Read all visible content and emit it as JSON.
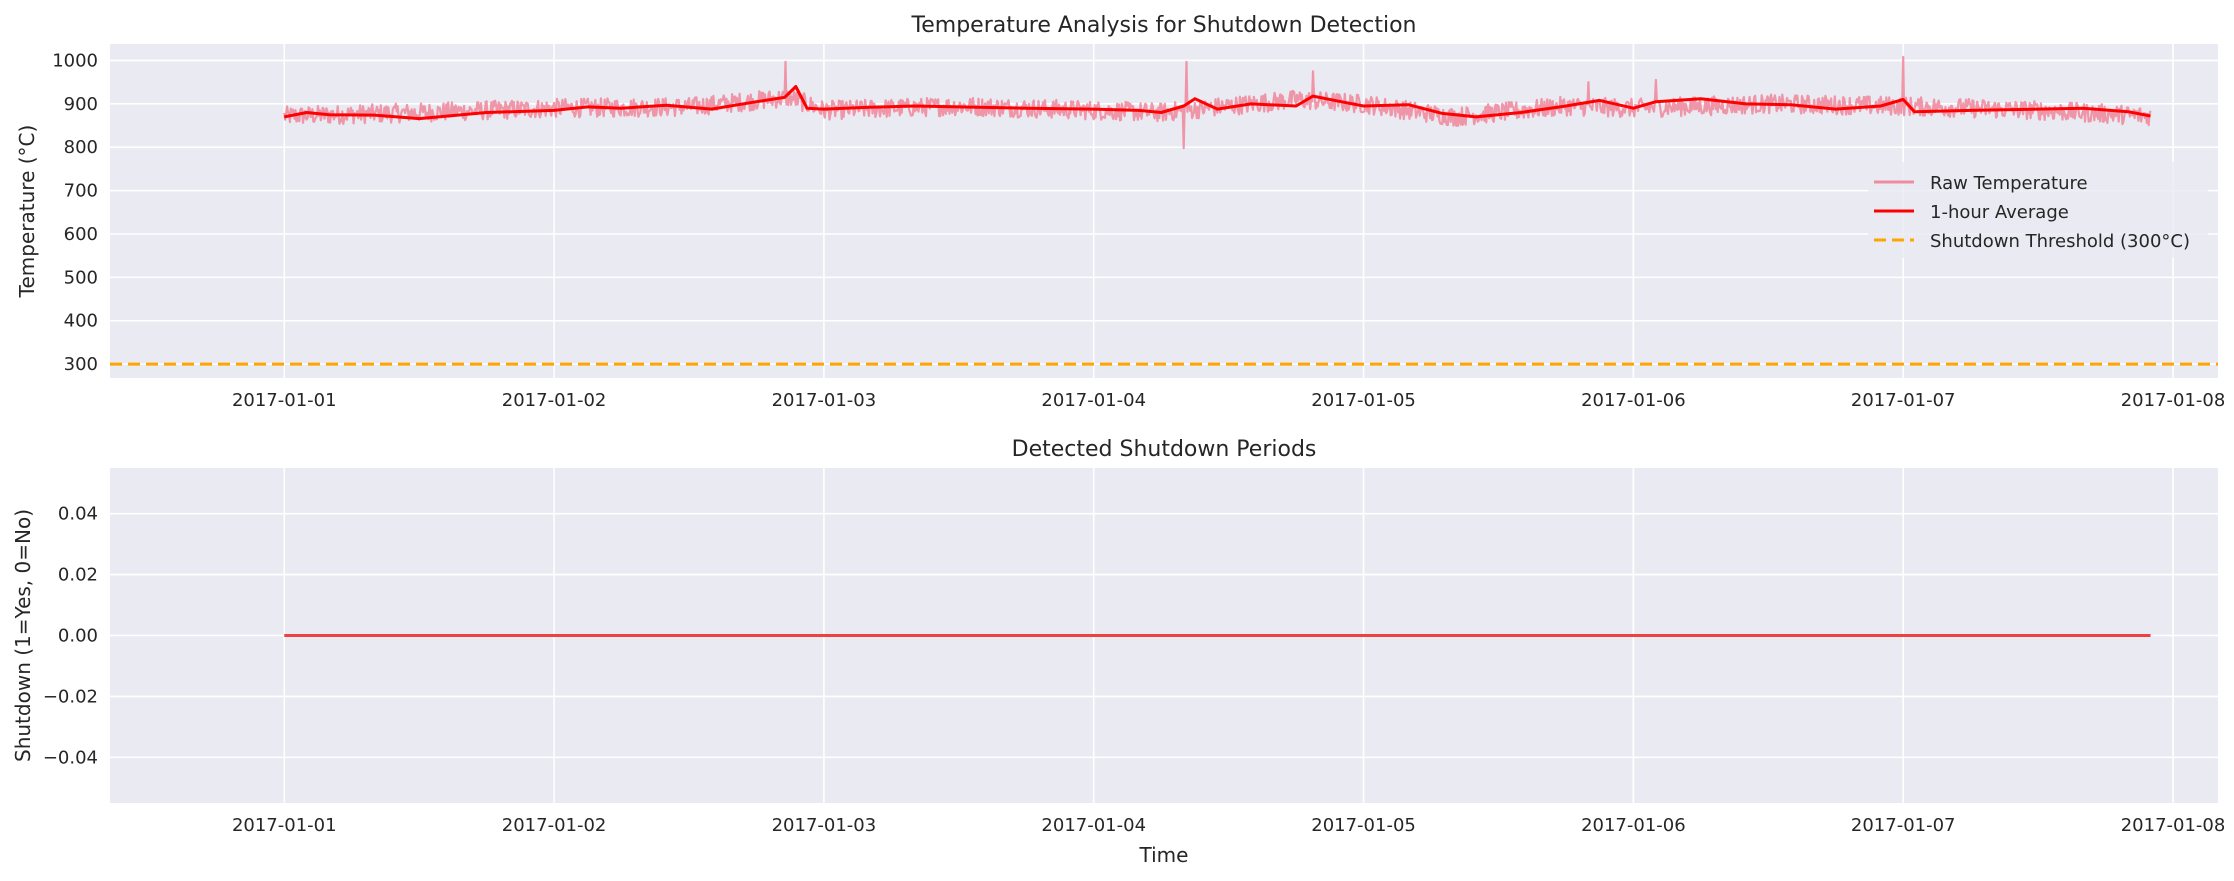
{
  "colors": {
    "axes_bg": "#EAEAF2",
    "grid": "#FFFFFF",
    "raw": "#F08CA0",
    "avg": "#FF0000",
    "threshold": "#FFA500",
    "shutdown_line": "#F04040"
  },
  "chart_data": [
    {
      "type": "line",
      "title": "Temperature Analysis for Shutdown Detection",
      "xlabel": "",
      "ylabel": "Temperature (°C)",
      "xlim": [
        "2016-12-31T08:30",
        "2017-01-08T04:00"
      ],
      "ylim": [
        268,
        1038
      ],
      "x_ticks": [
        "2017-01-01",
        "2017-01-02",
        "2017-01-03",
        "2017-01-04",
        "2017-01-05",
        "2017-01-06",
        "2017-01-07",
        "2017-01-08"
      ],
      "y_ticks": [
        300,
        400,
        500,
        600,
        700,
        800,
        900,
        1000
      ],
      "grid": true,
      "legend_position": "center-right",
      "series": [
        {
          "name": "Raw Temperature",
          "style": "solid",
          "x_start": "2017-01-01T00:00",
          "x_end": "2017-01-07T22:00",
          "baseline_points": [
            [
              "2017-01-01T00:00",
              872
            ],
            [
              "2017-01-01T12:00",
              880
            ],
            [
              "2017-01-02T00:00",
              890
            ],
            [
              "2017-01-02T12:00",
              893
            ],
            [
              "2017-01-02T21:00",
              915
            ],
            [
              "2017-01-03T00:00",
              885
            ],
            [
              "2017-01-03T12:00",
              895
            ],
            [
              "2017-01-04T00:00",
              885
            ],
            [
              "2017-01-04T06:00",
              880
            ],
            [
              "2017-01-04T18:00",
              910
            ],
            [
              "2017-01-05T00:00",
              900
            ],
            [
              "2017-01-05T08:00",
              870
            ],
            [
              "2017-01-05T18:00",
              895
            ],
            [
              "2017-01-06T00:00",
              890
            ],
            [
              "2017-01-06T12:00",
              900
            ],
            [
              "2017-01-07T00:00",
              895
            ],
            [
              "2017-01-07T12:00",
              885
            ],
            [
              "2017-01-07T22:00",
              872
            ]
          ],
          "noise_amplitude": 22,
          "spikes": [
            [
              "2017-01-02T20:35",
              997
            ],
            [
              "2017-01-04T08:15",
              997
            ],
            [
              "2017-01-04T08:00",
              798
            ],
            [
              "2017-01-04T19:30",
              975
            ],
            [
              "2017-01-07T00:00",
              1008
            ],
            [
              "2017-01-05T20:00",
              950
            ],
            [
              "2017-01-06T02:00",
              955
            ]
          ]
        },
        {
          "name": "1-hour Average",
          "style": "solid",
          "points": [
            [
              "2017-01-01T00:00",
              870
            ],
            [
              "2017-01-01T02:00",
              880
            ],
            [
              "2017-01-01T04:00",
              875
            ],
            [
              "2017-01-01T08:00",
              874
            ],
            [
              "2017-01-01T12:00",
              866
            ],
            [
              "2017-01-01T18:00",
              880
            ],
            [
              "2017-01-02T00:00",
              885
            ],
            [
              "2017-01-02T03:00",
              893
            ],
            [
              "2017-01-02T06:00",
              890
            ],
            [
              "2017-01-02T10:00",
              897
            ],
            [
              "2017-01-02T14:00",
              888
            ],
            [
              "2017-01-02T18:00",
              905
            ],
            [
              "2017-01-02T20:30",
              915
            ],
            [
              "2017-01-02T21:30",
              940
            ],
            [
              "2017-01-02T22:30",
              890
            ],
            [
              "2017-01-03T00:00",
              888
            ],
            [
              "2017-01-03T04:00",
              892
            ],
            [
              "2017-01-03T08:00",
              895
            ],
            [
              "2017-01-03T12:00",
              893
            ],
            [
              "2017-01-03T18:00",
              890
            ],
            [
              "2017-01-04T00:00",
              888
            ],
            [
              "2017-01-04T04:00",
              885
            ],
            [
              "2017-01-04T06:00",
              880
            ],
            [
              "2017-01-04T08:00",
              895
            ],
            [
              "2017-01-04T09:00",
              912
            ],
            [
              "2017-01-04T11:00",
              888
            ],
            [
              "2017-01-04T14:00",
              900
            ],
            [
              "2017-01-04T18:00",
              895
            ],
            [
              "2017-01-04T19:30",
              918
            ],
            [
              "2017-01-04T22:00",
              905
            ],
            [
              "2017-01-05T00:00",
              895
            ],
            [
              "2017-01-05T04:00",
              898
            ],
            [
              "2017-01-05T07:00",
              878
            ],
            [
              "2017-01-05T10:00",
              870
            ],
            [
              "2017-01-05T14:00",
              880
            ],
            [
              "2017-01-05T18:00",
              895
            ],
            [
              "2017-01-05T21:00",
              908
            ],
            [
              "2017-01-06T00:00",
              890
            ],
            [
              "2017-01-06T02:00",
              905
            ],
            [
              "2017-01-06T06:00",
              912
            ],
            [
              "2017-01-06T10:00",
              900
            ],
            [
              "2017-01-06T14:00",
              898
            ],
            [
              "2017-01-06T18:00",
              888
            ],
            [
              "2017-01-06T22:00",
              895
            ],
            [
              "2017-01-07T00:00",
              910
            ],
            [
              "2017-01-07T01:00",
              882
            ],
            [
              "2017-01-07T06:00",
              885
            ],
            [
              "2017-01-07T12:00",
              888
            ],
            [
              "2017-01-07T16:00",
              890
            ],
            [
              "2017-01-07T20:00",
              882
            ],
            [
              "2017-01-07T22:00",
              872
            ]
          ]
        },
        {
          "name": "Shutdown Threshold (300°C)",
          "style": "dashed",
          "value": 300
        }
      ]
    },
    {
      "type": "line",
      "title": "Detected Shutdown Periods",
      "xlabel": "Time",
      "ylabel": "Shutdown (1=Yes, 0=No)",
      "xlim": [
        "2016-12-31T08:30",
        "2017-01-08T04:00"
      ],
      "ylim": [
        -0.055,
        0.055
      ],
      "x_ticks": [
        "2017-01-01",
        "2017-01-02",
        "2017-01-03",
        "2017-01-04",
        "2017-01-05",
        "2017-01-06",
        "2017-01-07",
        "2017-01-08"
      ],
      "y_ticks": [
        "−0.04",
        "−0.02",
        "0.00",
        "0.02",
        "0.04"
      ],
      "y_tick_values": [
        -0.04,
        -0.02,
        0.0,
        0.02,
        0.04
      ],
      "grid": true,
      "series": [
        {
          "x": [
            "2017-01-01T00:00",
            "2017-01-07T22:00"
          ],
          "values": [
            0,
            0
          ]
        }
      ]
    }
  ]
}
